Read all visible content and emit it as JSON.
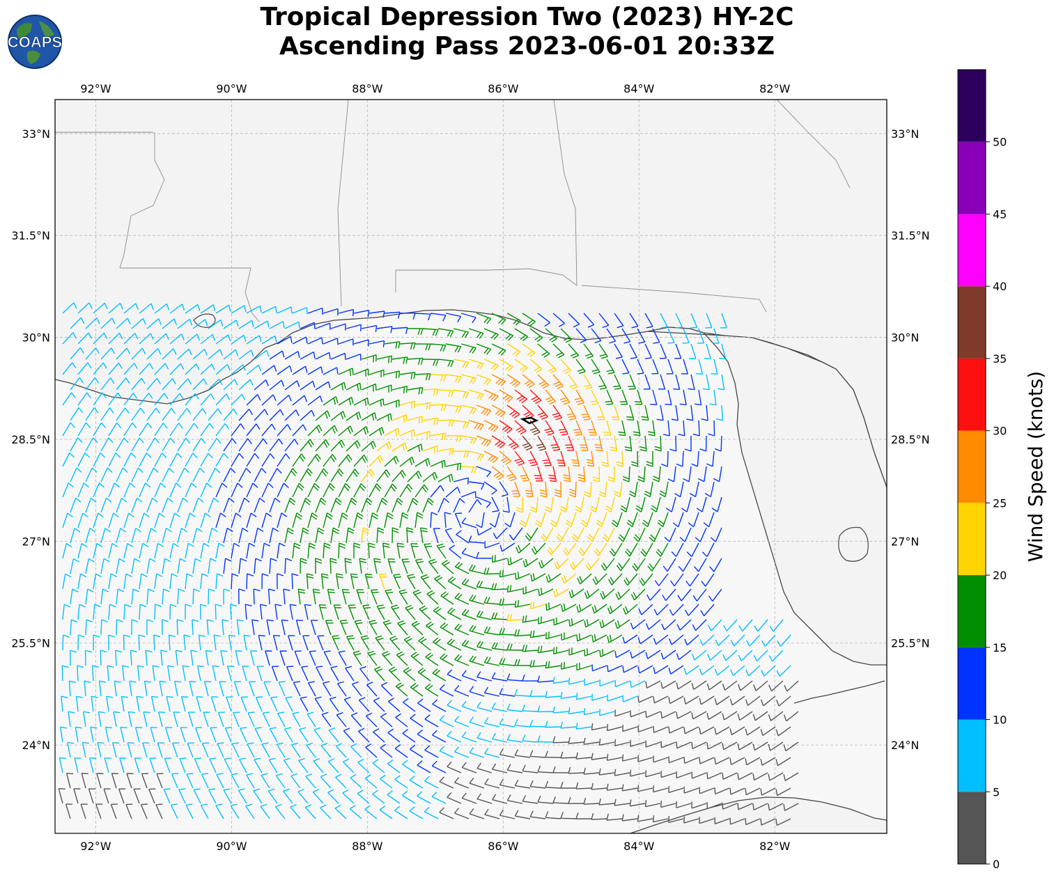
{
  "header": {
    "title_line1": "Tropical Depression Two (2023) HY-2C",
    "title_line2": "Ascending Pass 2023-06-01 20:33Z"
  },
  "logo": {
    "text": "COAPS",
    "icon": "globe-icon"
  },
  "map": {
    "lon_ticks": [
      "92°W",
      "90°W",
      "88°W",
      "86°W",
      "84°W",
      "82°W"
    ],
    "lat_ticks": [
      "33°N",
      "31.5°N",
      "30°N",
      "28.5°N",
      "27°N",
      "25.5°N",
      "24°N"
    ],
    "lon_range": [
      -92.6,
      -80.35
    ],
    "lat_range": [
      22.7,
      33.5
    ],
    "storm_center": {
      "lon": -86.4,
      "lat": 27.4
    }
  },
  "colorbar": {
    "label": "Wind Speed (knots)",
    "ticks": [
      "0",
      "5",
      "10",
      "15",
      "20",
      "25",
      "30",
      "35",
      "40",
      "45",
      "50"
    ],
    "bins": [
      {
        "from": 0,
        "to": 5,
        "color": "#555555"
      },
      {
        "from": 5,
        "to": 10,
        "color": "#00bfff"
      },
      {
        "from": 10,
        "to": 15,
        "color": "#0033ff"
      },
      {
        "from": 15,
        "to": 20,
        "color": "#008f00"
      },
      {
        "from": 20,
        "to": 25,
        "color": "#ffd400"
      },
      {
        "from": 25,
        "to": 30,
        "color": "#ff8c00"
      },
      {
        "from": 30,
        "to": 35,
        "color": "#ff1010"
      },
      {
        "from": 35,
        "to": 40,
        "color": "#7f3a2a"
      },
      {
        "from": 40,
        "to": 45,
        "color": "#ff00ff"
      },
      {
        "from": 45,
        "to": 50,
        "color": "#8a00b8"
      },
      {
        "from": 50,
        "to": 55,
        "color": "#2e005e"
      }
    ]
  }
}
